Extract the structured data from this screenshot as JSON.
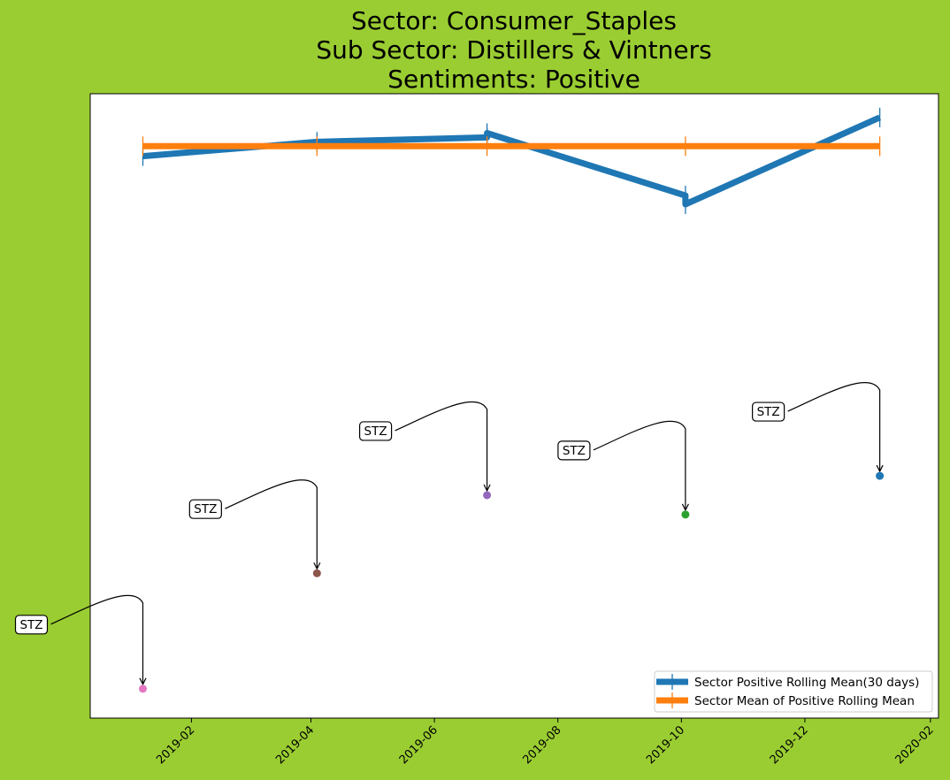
{
  "chart_data": {
    "type": "line",
    "title": {
      "line1": "Sector:  Consumer_Staples",
      "line2": "Sub Sector:  Distillers & Vintners",
      "line3": "Sentiments:  Positive"
    },
    "xlabel": "",
    "ylabel": "",
    "x_axis": {
      "type": "date",
      "range": [
        "2018-12-13",
        "2020-02-05"
      ],
      "ticks": [
        "2019-02",
        "2019-04",
        "2019-06",
        "2019-08",
        "2019-10",
        "2019-12",
        "2020-02"
      ]
    },
    "y_axis": {
      "range": [
        0,
        1
      ],
      "ticks_shown": false
    },
    "grid": false,
    "legend": {
      "placement": "lower-right",
      "entries": [
        "Sector Positive Rolling Mean(30 days)",
        "Sector Mean of Positive Rolling Mean"
      ]
    },
    "series": [
      {
        "name": "Sector Positive Rolling Mean(30 days)",
        "color": "#1f77b4",
        "error_bars": true,
        "points": [
          {
            "x": "2019-01-08",
            "y": 0.9
          },
          {
            "x": "2019-04-04",
            "y": 0.923
          },
          {
            "x": "2019-06-27",
            "y": 0.93
          },
          {
            "x": "2019-06-27",
            "y": 0.937
          },
          {
            "x": "2019-10-03",
            "y": 0.837
          },
          {
            "x": "2019-10-03",
            "y": 0.823
          },
          {
            "x": "2020-01-07",
            "y": 0.962
          }
        ]
      },
      {
        "name": "Sector Mean of Positive Rolling Mean",
        "color": "#ff7f0e",
        "error_bars": true,
        "points": [
          {
            "x": "2019-01-08",
            "y": 0.916
          },
          {
            "x": "2019-04-04",
            "y": 0.916
          },
          {
            "x": "2019-06-27",
            "y": 0.916
          },
          {
            "x": "2019-10-03",
            "y": 0.916
          },
          {
            "x": "2020-01-07",
            "y": 0.916
          }
        ]
      }
    ],
    "annotations": [
      {
        "label": "STZ",
        "x": "2019-01-08",
        "y": 0.047,
        "color": "#e377c2"
      },
      {
        "label": "STZ",
        "x": "2019-04-04",
        "y": 0.232,
        "color": "#8c564b"
      },
      {
        "label": "STZ",
        "x": "2019-06-27",
        "y": 0.357,
        "color": "#9467bd"
      },
      {
        "label": "STZ",
        "x": "2019-10-03",
        "y": 0.326,
        "color": "#2ca02c"
      },
      {
        "label": "STZ",
        "x": "2020-01-07",
        "y": 0.388,
        "color": "#1f77b4"
      }
    ]
  }
}
